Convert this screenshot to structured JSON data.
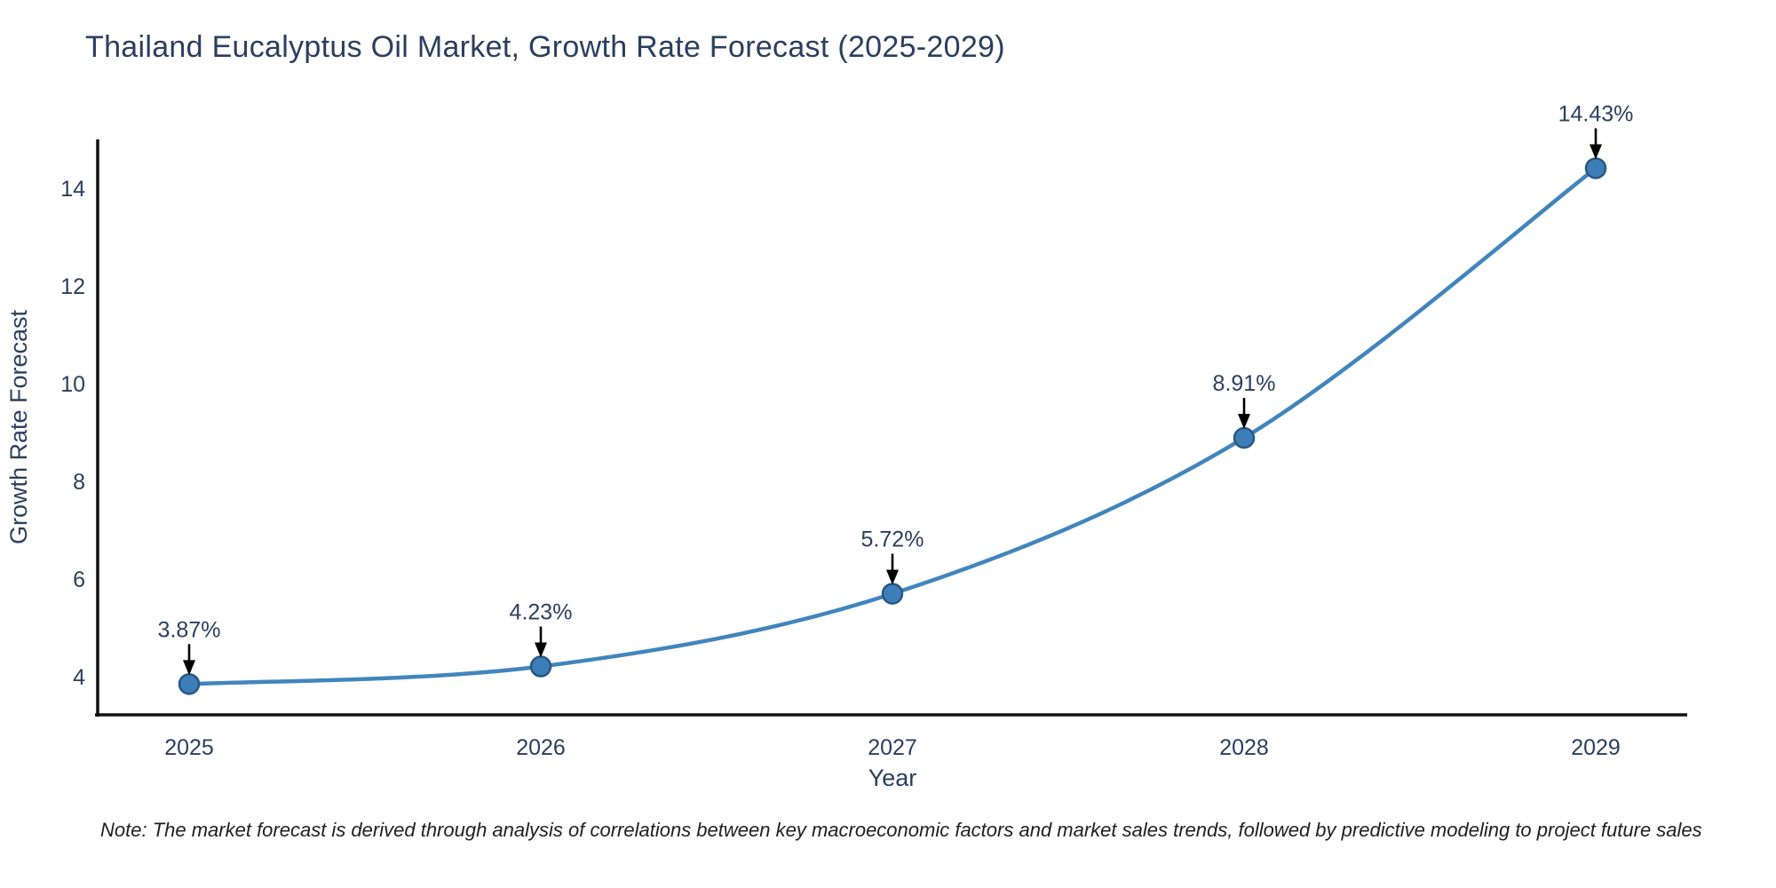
{
  "chart_data": {
    "type": "line",
    "title": "Thailand Eucalyptus Oil Market, Growth Rate Forecast (2025-2029)",
    "xlabel": "Year",
    "ylabel": "Growth Rate Forecast",
    "categories": [
      "2025",
      "2026",
      "2027",
      "2028",
      "2029"
    ],
    "values": [
      3.87,
      4.23,
      5.72,
      8.91,
      14.43
    ],
    "point_labels": [
      "3.87%",
      "4.23%",
      "5.72%",
      "8.91%",
      "14.43%"
    ],
    "yticks": [
      4,
      6,
      8,
      10,
      12,
      14
    ],
    "ylim": [
      3.24,
      15.02
    ],
    "grid": false,
    "legend": "none",
    "smooth_spline": true,
    "colors": {
      "line": "#4285bd",
      "marker_fill": "#3d7eb8",
      "marker_edge": "#2a5783",
      "annotation_arrow": "#000000",
      "text": "#2a3f5f",
      "axis": "#111111"
    },
    "note": "Note: The market forecast is derived through analysis of correlations between key macroeconomic factors and market sales trends, followed by predictive modeling to project future sales"
  }
}
